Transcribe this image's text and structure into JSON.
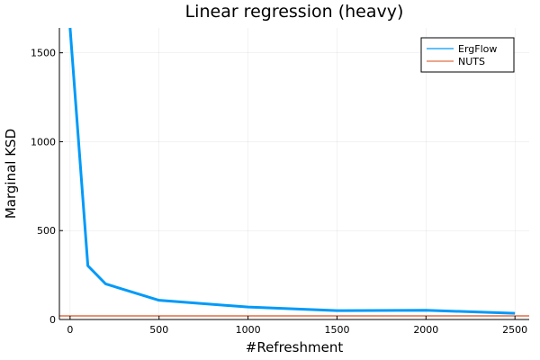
{
  "chart_data": {
    "type": "line",
    "title": "Linear regression (heavy)",
    "xlabel": "#Refreshment",
    "ylabel": "Marginal KSD",
    "xlim": [
      -60,
      2580
    ],
    "ylim": [
      0,
      1640
    ],
    "xticks": [
      0,
      500,
      1000,
      1500,
      2000,
      2500
    ],
    "yticks": [
      0,
      500,
      1000,
      1500
    ],
    "grid": true,
    "legend_position": "top-right",
    "series": [
      {
        "name": "ErgFlow",
        "color": "#009af9",
        "x": [
          0,
          100,
          200,
          500,
          1000,
          1500,
          2000,
          2500
        ],
        "y": [
          1640,
          302,
          200,
          108,
          70,
          50,
          52,
          35
        ]
      },
      {
        "name": "NUTS",
        "color": "#e26f46",
        "x": [
          -60,
          2580
        ],
        "y": [
          20,
          20
        ]
      }
    ]
  }
}
